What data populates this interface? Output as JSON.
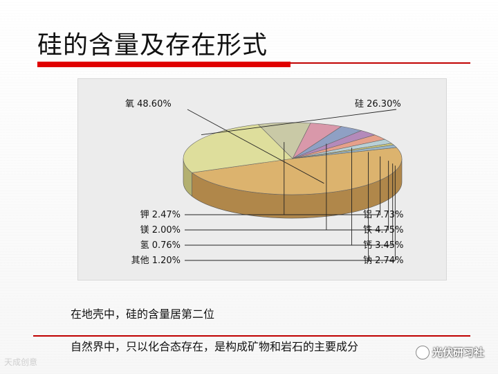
{
  "slide": {
    "title": "硅的含量及存在形式",
    "line1": "在地壳中，硅的含量居第二位",
    "line2": "自然界中，只以化合态存在，是构成矿物和岩石的主要成分",
    "watermark_left": "天成创意",
    "watermark_right": "光伏研习社"
  },
  "chart_data": {
    "type": "pie",
    "title": "",
    "slices": [
      {
        "label": "氧 48.60%",
        "name": "氧",
        "value": 48.6,
        "color": "#dcb36e",
        "side": "#b0874a"
      },
      {
        "label": "硅 26.30%",
        "name": "硅",
        "value": 26.3,
        "color": "#dede9c",
        "side": "#b3b070"
      },
      {
        "label": "铝 7.73%",
        "name": "铝",
        "value": 7.73,
        "color": "#c9c9a6",
        "side": "#9a9a7c"
      },
      {
        "label": "铁 4.75%",
        "name": "铁",
        "value": 4.75,
        "color": "#d998aa",
        "side": "#b06478"
      },
      {
        "label": "钙 3.45%",
        "name": "钙",
        "value": 3.45,
        "color": "#8fa0c4",
        "side": "#5d6f96"
      },
      {
        "label": "钠 2.74%",
        "name": "钠",
        "value": 2.74,
        "color": "#b48aba",
        "side": "#82588a"
      },
      {
        "label": "钾 2.47%",
        "name": "钾",
        "value": 2.47,
        "color": "#e6a08a",
        "side": "#b66e58"
      },
      {
        "label": "镁 2.00%",
        "name": "镁",
        "value": 2.0,
        "color": "#b8d0d6",
        "side": "#84a0a8"
      },
      {
        "label": "氢 0.76%",
        "name": "氢",
        "value": 0.76,
        "color": "#d6d07a",
        "side": "#a8a050"
      },
      {
        "label": "其他 1.20%",
        "name": "其他",
        "value": 1.2,
        "color": "#9ab6c8",
        "side": "#6c8ca0"
      }
    ]
  }
}
